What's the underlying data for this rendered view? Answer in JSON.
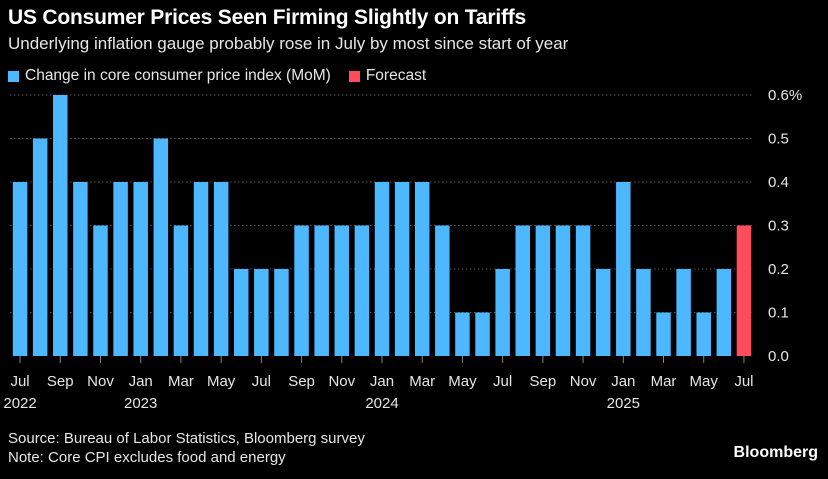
{
  "title": "US Consumer Prices Seen Firming Slightly on Tariffs",
  "subtitle": "Underlying inflation gauge probably rose in July by most since start of year",
  "legend": {
    "actual": "Change in core consumer price index (MoM)",
    "forecast": "Forecast"
  },
  "source": "Source: Bureau of Labor Statistics, Bloomberg survey",
  "note": "Note: Core CPI excludes food and energy",
  "brand": "Bloomberg",
  "colors": {
    "actual": "#4db8ff",
    "forecast": "#ff4d5a",
    "grid": "#555555",
    "text": "#e6e6e6"
  },
  "chart_data": {
    "type": "bar",
    "title": "US Consumer Prices Seen Firming Slightly on Tariffs",
    "ylabel": "Change in core consumer price index (MoM)",
    "unit": "%",
    "ylim": [
      0,
      0.6
    ],
    "yticks": [
      0.0,
      0.1,
      0.2,
      0.3,
      0.4,
      0.5,
      0.6
    ],
    "ytick_labels": [
      "0.0",
      "0.1",
      "0.2",
      "0.3",
      "0.4",
      "0.5",
      "0.6%"
    ],
    "grid": true,
    "categories": [
      "Jul 2022",
      "Aug 2022",
      "Sep 2022",
      "Oct 2022",
      "Nov 2022",
      "Dec 2022",
      "Jan 2023",
      "Feb 2023",
      "Mar 2023",
      "Apr 2023",
      "May 2023",
      "Jun 2023",
      "Jul 2023",
      "Aug 2023",
      "Sep 2023",
      "Oct 2023",
      "Nov 2023",
      "Dec 2023",
      "Jan 2024",
      "Feb 2024",
      "Mar 2024",
      "Apr 2024",
      "May 2024",
      "Jun 2024",
      "Jul 2024",
      "Aug 2024",
      "Sep 2024",
      "Oct 2024",
      "Nov 2024",
      "Dec 2024",
      "Jan 2025",
      "Feb 2025",
      "Mar 2025",
      "Apr 2025",
      "May 2025",
      "Jun 2025",
      "Jul 2025"
    ],
    "values": [
      0.4,
      0.5,
      0.6,
      0.4,
      0.3,
      0.4,
      0.4,
      0.5,
      0.3,
      0.4,
      0.4,
      0.2,
      0.2,
      0.2,
      0.3,
      0.3,
      0.3,
      0.3,
      0.4,
      0.4,
      0.4,
      0.3,
      0.1,
      0.1,
      0.2,
      0.3,
      0.3,
      0.3,
      0.3,
      0.2,
      0.4,
      0.2,
      0.1,
      0.2,
      0.1,
      0.2,
      0.3
    ],
    "forecast_flags": [
      false,
      false,
      false,
      false,
      false,
      false,
      false,
      false,
      false,
      false,
      false,
      false,
      false,
      false,
      false,
      false,
      false,
      false,
      false,
      false,
      false,
      false,
      false,
      false,
      false,
      false,
      false,
      false,
      false,
      false,
      false,
      false,
      false,
      false,
      false,
      false,
      true
    ],
    "xtick_labels": [
      {
        "index": 0,
        "month": "Jul",
        "year": "2022"
      },
      {
        "index": 2,
        "month": "Sep",
        "year": ""
      },
      {
        "index": 4,
        "month": "Nov",
        "year": ""
      },
      {
        "index": 6,
        "month": "Jan",
        "year": "2023"
      },
      {
        "index": 8,
        "month": "Mar",
        "year": ""
      },
      {
        "index": 10,
        "month": "May",
        "year": ""
      },
      {
        "index": 12,
        "month": "Jul",
        "year": ""
      },
      {
        "index": 14,
        "month": "Sep",
        "year": ""
      },
      {
        "index": 16,
        "month": "Nov",
        "year": ""
      },
      {
        "index": 18,
        "month": "Jan",
        "year": "2024"
      },
      {
        "index": 20,
        "month": "Mar",
        "year": ""
      },
      {
        "index": 22,
        "month": "May",
        "year": ""
      },
      {
        "index": 24,
        "month": "Jul",
        "year": ""
      },
      {
        "index": 26,
        "month": "Sep",
        "year": ""
      },
      {
        "index": 28,
        "month": "Nov",
        "year": ""
      },
      {
        "index": 30,
        "month": "Jan",
        "year": "2025"
      },
      {
        "index": 32,
        "month": "Mar",
        "year": ""
      },
      {
        "index": 34,
        "month": "May",
        "year": ""
      },
      {
        "index": 36,
        "month": "Jul",
        "year": ""
      }
    ]
  }
}
